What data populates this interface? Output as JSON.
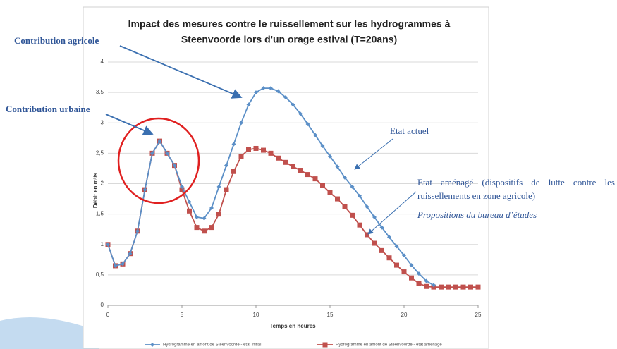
{
  "chart_data": {
    "type": "line",
    "title": [
      "Impact des mesures contre le ruissellement sur les hydrogrammes à",
      "Steenvoorde lors d'un orage estival (T=20ans)"
    ],
    "x_label": "Temps en heures",
    "y_label": "Débit en m³/s",
    "x": [
      0,
      0.5,
      1,
      1.5,
      2,
      2.5,
      3,
      3.5,
      4,
      4.5,
      5,
      5.5,
      6,
      6.5,
      7,
      7.5,
      8,
      8.5,
      9,
      9.5,
      10,
      10.5,
      11,
      11.5,
      12,
      12.5,
      13,
      13.5,
      14,
      14.5,
      15,
      15.5,
      16,
      16.5,
      17,
      17.5,
      18,
      18.5,
      19,
      19.5,
      20,
      20.5,
      21,
      21.5,
      22,
      22.5,
      23,
      23.5,
      24,
      24.5,
      25
    ],
    "series": [
      {
        "name": "Hydrogramme en amont de Steenvoorde - état initial",
        "color": "#5b8fc7",
        "marker": "diamond",
        "values": [
          1.0,
          0.65,
          0.68,
          0.85,
          1.22,
          1.9,
          2.5,
          2.7,
          2.5,
          2.3,
          1.95,
          1.7,
          1.45,
          1.43,
          1.6,
          1.95,
          2.3,
          2.65,
          3.0,
          3.3,
          3.5,
          3.57,
          3.57,
          3.52,
          3.42,
          3.3,
          3.15,
          2.98,
          2.8,
          2.62,
          2.45,
          2.28,
          2.1,
          1.95,
          1.8,
          1.62,
          1.45,
          1.28,
          1.12,
          0.97,
          0.82,
          0.66,
          0.52,
          0.4,
          0.33,
          null,
          null,
          null,
          null,
          null,
          null
        ]
      },
      {
        "name": "Hydrogramme en amont de Steenvoorde - état aménagé",
        "color": "#c0504d",
        "marker": "square",
        "values": [
          1.0,
          0.65,
          0.68,
          0.85,
          1.22,
          1.9,
          2.5,
          2.7,
          2.5,
          2.3,
          1.9,
          1.55,
          1.28,
          1.22,
          1.28,
          1.5,
          1.9,
          2.2,
          2.45,
          2.56,
          2.58,
          2.55,
          2.5,
          2.42,
          2.35,
          2.28,
          2.22,
          2.15,
          2.08,
          1.97,
          1.85,
          1.75,
          1.62,
          1.48,
          1.32,
          1.16,
          1.02,
          0.9,
          0.78,
          0.66,
          0.55,
          0.45,
          0.36,
          0.31,
          0.3,
          0.3,
          0.3,
          0.3,
          0.3,
          0.3,
          0.3
        ]
      }
    ],
    "xlim": [
      0,
      25
    ],
    "ylim": [
      0,
      4
    ],
    "xticks": [
      0,
      5,
      10,
      15,
      20,
      25
    ],
    "yticks": [
      0,
      {
        "value": 0.5,
        "label": "0,5"
      },
      1,
      {
        "value": 1.5,
        "label": "1,5"
      },
      2,
      {
        "value": 2.5,
        "label": "2,5"
      },
      3,
      {
        "value": 3.5,
        "label": "3,5"
      },
      4
    ],
    "grid": true,
    "legend": "bottom",
    "annotations": [
      "Contribution agricole",
      "Contribution urbaine",
      "Etat actuel",
      "Etat aménagé (dispositifs de lutte contre les ruissellements en zone agricole)",
      "Propositions du bureau d’études"
    ]
  }
}
